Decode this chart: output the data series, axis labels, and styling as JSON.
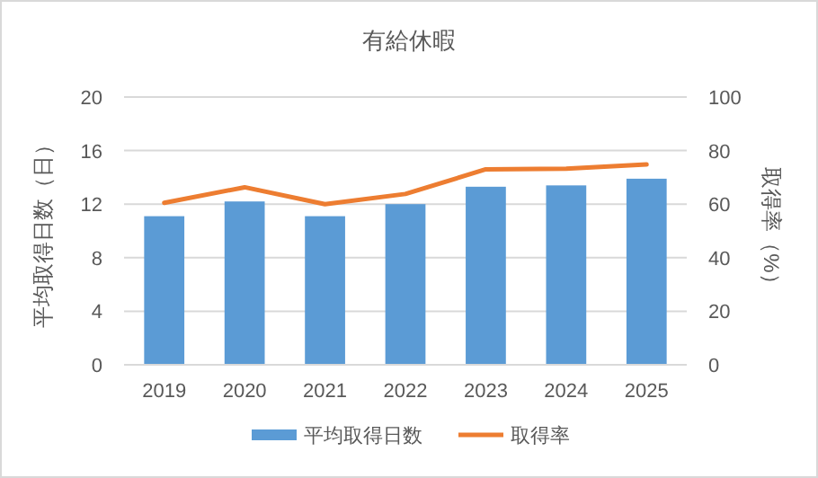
{
  "chart_data": {
    "type": "bar",
    "title": "有給休暇",
    "ylabel": "平均取得日数（日）",
    "y2label": "取得率（%）",
    "categories": [
      "2019",
      "2020",
      "2021",
      "2022",
      "2023",
      "2024",
      "2025"
    ],
    "series": [
      {
        "name": "平均取得日数",
        "color": "#5b9bd5",
        "values": [
          11.1,
          12.2,
          11.1,
          12.0,
          13.3,
          13.4,
          13.9
        ]
      },
      {
        "name": "取得率",
        "type": "line",
        "axis": "y2",
        "color": "#ed7d31",
        "values": [
          60.5,
          66.3,
          60,
          63.8,
          73,
          73.2,
          74.8
        ]
      }
    ],
    "ylim": [
      0,
      20
    ],
    "yticks": [
      0,
      4,
      8,
      12,
      16,
      20
    ],
    "y2lim": [
      0,
      100
    ],
    "y2ticks": [
      0,
      20,
      40,
      60,
      80,
      100
    ],
    "grid": "y",
    "legend": "bottom",
    "marker": "none"
  }
}
